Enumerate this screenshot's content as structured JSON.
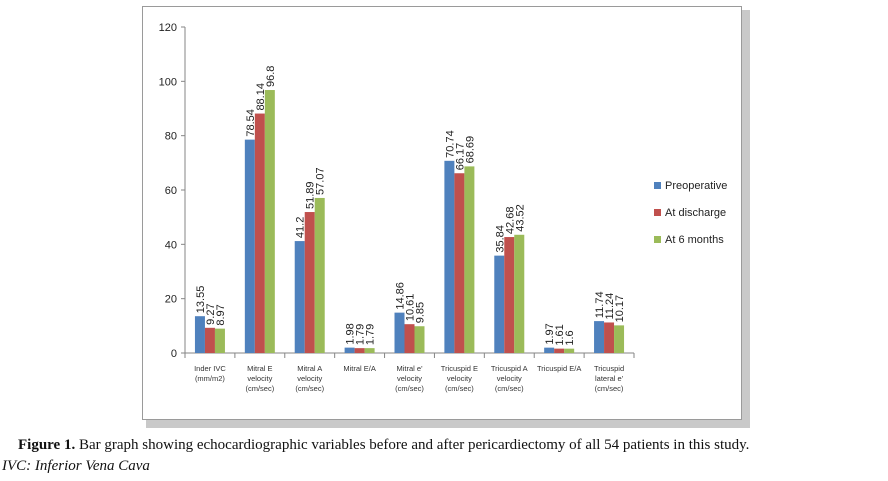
{
  "chart_data": {
    "type": "bar",
    "categories": [
      [
        "Inder IVC",
        "(mm/m2)"
      ],
      [
        "Mitral E",
        "velocity",
        "(cm/sec)"
      ],
      [
        "Mitral A",
        "velocity",
        "(cm/sec)"
      ],
      [
        "Mitral E/A"
      ],
      [
        "Mitral e'",
        "velocity",
        "(cm/sec)"
      ],
      [
        "Tricuspid E",
        "velocity",
        "(cm/sec)"
      ],
      [
        "Tricuspid A",
        "velocity",
        "(cm/sec)"
      ],
      [
        "Tricuspid E/A"
      ],
      [
        "Tricuspid",
        "lateral e'",
        "(cm/sec)"
      ]
    ],
    "series": [
      {
        "name": "Preoperative",
        "color": "#4f81bd",
        "values": [
          13.55,
          78.54,
          41.2,
          1.98,
          14.86,
          70.74,
          35.84,
          1.97,
          11.74
        ]
      },
      {
        "name": "At discharge",
        "color": "#c0504d",
        "values": [
          9.27,
          88.14,
          51.89,
          1.79,
          10.61,
          66.17,
          42.68,
          1.61,
          11.24
        ]
      },
      {
        "name": "At 6 months",
        "color": "#9bbb59",
        "values": [
          8.97,
          96.8,
          57.07,
          1.79,
          9.85,
          68.69,
          43.52,
          1.6,
          10.17
        ]
      }
    ],
    "data_labels": [
      [
        "13.55",
        "78.54",
        "41.2",
        "1.98",
        "14.86",
        "70.74",
        "35.84",
        "1.97",
        "11.74"
      ],
      [
        "9.27",
        "88.14",
        "51.89",
        "1.79",
        "10.61",
        "66.17",
        "42.68",
        "1.61",
        "11.24"
      ],
      [
        "8.97",
        "96.8",
        "57.07",
        "1.79",
        "9.85",
        "68.69",
        "43.52",
        "1.6",
        "10.17"
      ]
    ],
    "yticks": [
      "0",
      "20",
      "40",
      "60",
      "80",
      "100",
      "120"
    ],
    "ylim": [
      0,
      120
    ],
    "grid": false,
    "legend_position": "right"
  },
  "caption": {
    "label": "Figure 1.",
    "text": " Bar graph showing echocardiographic variables before and after pericardiectomy of all 54 patients in this study.",
    "note": "IVC: Inferior Vena Cava"
  }
}
